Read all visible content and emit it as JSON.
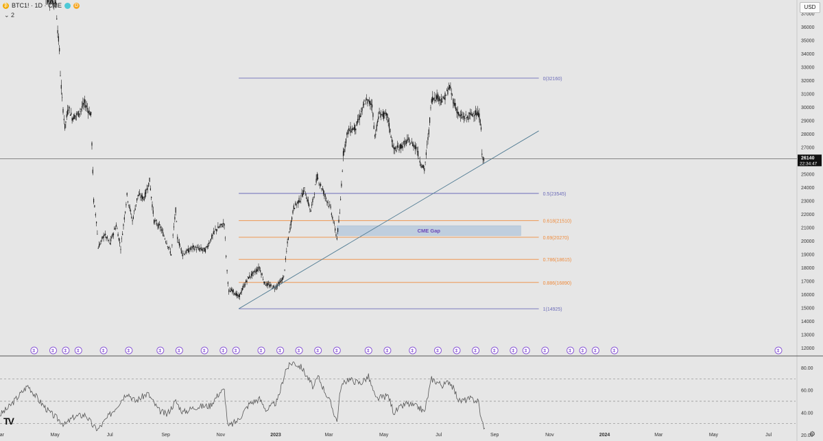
{
  "header": {
    "symbol_text": "BTC1! · 1D · CME",
    "symbol_icon": "bitcoin-icon",
    "badge_d": "D",
    "collapse_label": "2",
    "currency": "USD"
  },
  "current_price": {
    "value": "26140",
    "countdown": "22:34:47"
  },
  "chart_data": {
    "type": "candlestick",
    "x_range": [
      "2022-03-01",
      "2024-07-31"
    ],
    "x_ticks": [
      {
        "date": "2022-03-01",
        "label": "Mar"
      },
      {
        "date": "2022-05-01",
        "label": "May"
      },
      {
        "date": "2022-07-01",
        "label": "Jul"
      },
      {
        "date": "2022-09-01",
        "label": "Sep"
      },
      {
        "date": "2022-11-01",
        "label": "Nov"
      },
      {
        "date": "2023-01-01",
        "label": "2023"
      },
      {
        "date": "2023-03-01",
        "label": "Mar"
      },
      {
        "date": "2023-05-01",
        "label": "May"
      },
      {
        "date": "2023-07-01",
        "label": "Jul"
      },
      {
        "date": "2023-09-01",
        "label": "Sep"
      },
      {
        "date": "2023-11-01",
        "label": "Nov"
      },
      {
        "date": "2024-01-01",
        "label": "2024"
      },
      {
        "date": "2024-03-01",
        "label": "Mar"
      },
      {
        "date": "2024-05-01",
        "label": "May"
      },
      {
        "date": "2024-07-01",
        "label": "Jul"
      }
    ],
    "price_axis": {
      "min": 11500,
      "max": 38000,
      "ticks": [
        12000,
        13000,
        14000,
        15000,
        16000,
        17000,
        18000,
        19000,
        20000,
        21000,
        22000,
        23000,
        24000,
        25000,
        26000,
        27000,
        28000,
        29000,
        30000,
        31000,
        32000,
        33000,
        34000,
        35000,
        36000,
        37000
      ]
    },
    "price_path": [
      {
        "date": "2022-04-20",
        "price": 38200
      },
      {
        "date": "2022-05-02",
        "price": 37800
      },
      {
        "date": "2022-05-04",
        "price": 35800
      },
      {
        "date": "2022-05-06",
        "price": 34200
      },
      {
        "date": "2022-05-07",
        "price": 32500
      },
      {
        "date": "2022-05-09",
        "price": 30500
      },
      {
        "date": "2022-05-12",
        "price": 28500
      },
      {
        "date": "2022-05-16",
        "price": 30000
      },
      {
        "date": "2022-05-20",
        "price": 29200
      },
      {
        "date": "2022-05-27",
        "price": 29500
      },
      {
        "date": "2022-06-03",
        "price": 30300
      },
      {
        "date": "2022-06-10",
        "price": 29400
      },
      {
        "date": "2022-06-13",
        "price": 23000
      },
      {
        "date": "2022-06-16",
        "price": 21500
      },
      {
        "date": "2022-06-18",
        "price": 19500
      },
      {
        "date": "2022-06-25",
        "price": 20500
      },
      {
        "date": "2022-07-01",
        "price": 19800
      },
      {
        "date": "2022-07-08",
        "price": 21200
      },
      {
        "date": "2022-07-13",
        "price": 19500
      },
      {
        "date": "2022-07-20",
        "price": 23400
      },
      {
        "date": "2022-07-26",
        "price": 21500
      },
      {
        "date": "2022-08-01",
        "price": 23400
      },
      {
        "date": "2022-08-08",
        "price": 23200
      },
      {
        "date": "2022-08-14",
        "price": 24500
      },
      {
        "date": "2022-08-19",
        "price": 21500
      },
      {
        "date": "2022-08-26",
        "price": 21000
      },
      {
        "date": "2022-09-02",
        "price": 19900
      },
      {
        "date": "2022-09-07",
        "price": 19000
      },
      {
        "date": "2022-09-12",
        "price": 22300
      },
      {
        "date": "2022-09-14",
        "price": 20200
      },
      {
        "date": "2022-09-20",
        "price": 19000
      },
      {
        "date": "2022-10-01",
        "price": 19500
      },
      {
        "date": "2022-10-15",
        "price": 19300
      },
      {
        "date": "2022-10-26",
        "price": 20800
      },
      {
        "date": "2022-11-05",
        "price": 21300
      },
      {
        "date": "2022-11-08",
        "price": 17700
      },
      {
        "date": "2022-11-10",
        "price": 16200
      },
      {
        "date": "2022-11-14",
        "price": 16300
      },
      {
        "date": "2022-11-21",
        "price": 15800
      },
      {
        "date": "2022-12-01",
        "price": 17200
      },
      {
        "date": "2022-12-14",
        "price": 18000
      },
      {
        "date": "2022-12-20",
        "price": 16800
      },
      {
        "date": "2022-12-31",
        "price": 16500
      },
      {
        "date": "2023-01-06",
        "price": 16900
      },
      {
        "date": "2023-01-10",
        "price": 17300
      },
      {
        "date": "2023-01-14",
        "price": 19800
      },
      {
        "date": "2023-01-21",
        "price": 22500
      },
      {
        "date": "2023-01-28",
        "price": 23100
      },
      {
        "date": "2023-02-02",
        "price": 23800
      },
      {
        "date": "2023-02-09",
        "price": 22200
      },
      {
        "date": "2023-02-16",
        "price": 24800
      },
      {
        "date": "2023-02-24",
        "price": 23500
      },
      {
        "date": "2023-03-03",
        "price": 22400
      },
      {
        "date": "2023-03-10",
        "price": 20200
      },
      {
        "date": "2023-03-13",
        "price": 22000
      },
      {
        "date": "2023-03-17",
        "price": 26500
      },
      {
        "date": "2023-03-22",
        "price": 28200
      },
      {
        "date": "2023-03-31",
        "price": 28500
      },
      {
        "date": "2023-04-11",
        "price": 30500
      },
      {
        "date": "2023-04-18",
        "price": 30200
      },
      {
        "date": "2023-04-21",
        "price": 27800
      },
      {
        "date": "2023-04-26",
        "price": 29500
      },
      {
        "date": "2023-05-05",
        "price": 29300
      },
      {
        "date": "2023-05-12",
        "price": 26800
      },
      {
        "date": "2023-05-19",
        "price": 27000
      },
      {
        "date": "2023-05-28",
        "price": 27500
      },
      {
        "date": "2023-06-06",
        "price": 27000
      },
      {
        "date": "2023-06-10",
        "price": 26000
      },
      {
        "date": "2023-06-15",
        "price": 25300
      },
      {
        "date": "2023-06-20",
        "price": 28200
      },
      {
        "date": "2023-06-23",
        "price": 30600
      },
      {
        "date": "2023-06-28",
        "price": 30800
      },
      {
        "date": "2023-07-06",
        "price": 30500
      },
      {
        "date": "2023-07-13",
        "price": 31500
      },
      {
        "date": "2023-07-18",
        "price": 30300
      },
      {
        "date": "2023-07-24",
        "price": 29300
      },
      {
        "date": "2023-08-01",
        "price": 29200
      },
      {
        "date": "2023-08-10",
        "price": 29600
      },
      {
        "date": "2023-08-15",
        "price": 29300
      },
      {
        "date": "2023-08-17",
        "price": 28500
      },
      {
        "date": "2023-08-18",
        "price": 26300
      },
      {
        "date": "2023-08-21",
        "price": 26140
      }
    ],
    "fibonacci": {
      "levels": [
        {
          "ratio": "0",
          "price": 32160,
          "label": "0(32160)",
          "color": "#6b6bb8"
        },
        {
          "ratio": "0.5",
          "price": 23545,
          "label": "0.5(23545)",
          "color": "#6b6bb8"
        },
        {
          "ratio": "0.618",
          "price": 21510,
          "label": "0.618(21510)",
          "color": "#ef8a3a"
        },
        {
          "ratio": "0.69",
          "price": 20270,
          "label": "0.69(20270)",
          "color": "#ef8a3a"
        },
        {
          "ratio": "0.786",
          "price": 18615,
          "label": "0.786(18615)",
          "color": "#ef8a3a"
        },
        {
          "ratio": "0.886",
          "price": 16890,
          "label": "0.886(16890)",
          "color": "#ef8a3a"
        },
        {
          "ratio": "1",
          "price": 14925,
          "label": "1(14925)",
          "color": "#6b6bb8"
        }
      ],
      "start_date": "2022-11-21",
      "end_date": "2023-10-20"
    },
    "cme_gap": {
      "label": "CME Gap",
      "price_low": 20400,
      "price_high": 21130,
      "start_date": "2023-03-10",
      "end_date": "2023-09-30",
      "color": "#b7c9dc"
    },
    "trendline": {
      "start_date": "2022-11-21",
      "start_price": 14925,
      "end_date": "2023-10-20",
      "end_price": 28220,
      "color": "#4f7a92"
    },
    "session_markers": [
      "2022-04-08",
      "2022-04-29",
      "2022-05-13",
      "2022-05-27",
      "2022-06-24",
      "2022-07-22",
      "2022-08-26",
      "2022-09-16",
      "2022-10-14",
      "2022-11-04",
      "2022-11-18",
      "2022-12-16",
      "2023-01-06",
      "2023-01-27",
      "2023-02-17",
      "2023-03-10",
      "2023-04-14",
      "2023-05-05",
      "2023-06-02",
      "2023-06-30",
      "2023-07-21",
      "2023-08-11",
      "2023-09-01",
      "2023-09-22",
      "2023-10-06",
      "2023-10-27",
      "2023-11-24",
      "2023-12-08",
      "2023-12-22",
      "2024-01-12",
      "2024-07-12"
    ],
    "rsi": {
      "ticks": [
        20,
        40,
        60,
        80
      ],
      "tick_labels": [
        "20.00",
        "40.00",
        "60.00",
        "80.00"
      ],
      "levels": [
        70,
        50,
        30
      ],
      "path": [
        {
          "date": "2022-03-01",
          "value": 38
        },
        {
          "date": "2022-03-10",
          "value": 44
        },
        {
          "date": "2022-03-22",
          "value": 55
        },
        {
          "date": "2022-04-01",
          "value": 64
        },
        {
          "date": "2022-04-14",
          "value": 50
        },
        {
          "date": "2022-04-25",
          "value": 40
        },
        {
          "date": "2022-05-06",
          "value": 33
        },
        {
          "date": "2022-05-12",
          "value": 29
        },
        {
          "date": "2022-05-22",
          "value": 36
        },
        {
          "date": "2022-06-04",
          "value": 38
        },
        {
          "date": "2022-06-13",
          "value": 27
        },
        {
          "date": "2022-06-18",
          "value": 25
        },
        {
          "date": "2022-06-28",
          "value": 35
        },
        {
          "date": "2022-07-08",
          "value": 45
        },
        {
          "date": "2022-07-20",
          "value": 58
        },
        {
          "date": "2022-07-29",
          "value": 50
        },
        {
          "date": "2022-08-12",
          "value": 57
        },
        {
          "date": "2022-08-24",
          "value": 42
        },
        {
          "date": "2022-09-02",
          "value": 38
        },
        {
          "date": "2022-09-12",
          "value": 50
        },
        {
          "date": "2022-09-20",
          "value": 40
        },
        {
          "date": "2022-10-04",
          "value": 45
        },
        {
          "date": "2022-10-20",
          "value": 46
        },
        {
          "date": "2022-10-31",
          "value": 58
        },
        {
          "date": "2022-11-05",
          "value": 60
        },
        {
          "date": "2022-11-09",
          "value": 27
        },
        {
          "date": "2022-11-20",
          "value": 33
        },
        {
          "date": "2022-12-03",
          "value": 48
        },
        {
          "date": "2022-12-14",
          "value": 52
        },
        {
          "date": "2022-12-22",
          "value": 42
        },
        {
          "date": "2023-01-03",
          "value": 50
        },
        {
          "date": "2023-01-12",
          "value": 78
        },
        {
          "date": "2023-01-20",
          "value": 85
        },
        {
          "date": "2023-01-30",
          "value": 80
        },
        {
          "date": "2023-02-12",
          "value": 62
        },
        {
          "date": "2023-02-17",
          "value": 72
        },
        {
          "date": "2023-03-03",
          "value": 48
        },
        {
          "date": "2023-03-10",
          "value": 32
        },
        {
          "date": "2023-03-14",
          "value": 62
        },
        {
          "date": "2023-03-22",
          "value": 70
        },
        {
          "date": "2023-04-05",
          "value": 66
        },
        {
          "date": "2023-04-14",
          "value": 72
        },
        {
          "date": "2023-04-22",
          "value": 52
        },
        {
          "date": "2023-05-06",
          "value": 55
        },
        {
          "date": "2023-05-12",
          "value": 40
        },
        {
          "date": "2023-05-26",
          "value": 48
        },
        {
          "date": "2023-06-10",
          "value": 44
        },
        {
          "date": "2023-06-15",
          "value": 40
        },
        {
          "date": "2023-06-23",
          "value": 70
        },
        {
          "date": "2023-07-06",
          "value": 64
        },
        {
          "date": "2023-07-13",
          "value": 68
        },
        {
          "date": "2023-07-24",
          "value": 50
        },
        {
          "date": "2023-08-05",
          "value": 52
        },
        {
          "date": "2023-08-14",
          "value": 50
        },
        {
          "date": "2023-08-17",
          "value": 34
        },
        {
          "date": "2023-08-21",
          "value": 26
        }
      ]
    }
  },
  "icons": {
    "tradingview_logo": "tradingview-logo-icon",
    "settings": "gear-icon"
  }
}
